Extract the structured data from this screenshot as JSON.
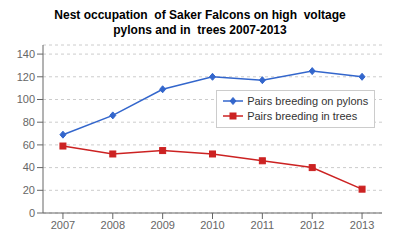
{
  "chart_data": {
    "type": "line",
    "title": "Nest occupation  of Saker Falcons on high  voltage\npylons and in  trees 2007-2013",
    "x": [
      2007,
      2008,
      2009,
      2010,
      2011,
      2012,
      2013
    ],
    "xlim": [
      2006.6,
      2013.4
    ],
    "xticks": [
      2007,
      2008,
      2009,
      2010,
      2011,
      2012,
      2013
    ],
    "ylim": [
      0,
      148
    ],
    "yticks": [
      0,
      20,
      40,
      60,
      80,
      100,
      120,
      140
    ],
    "grid": "y",
    "legend": "right",
    "series": [
      {
        "name": "Pairs breeding on pylons",
        "color": "#3366CC",
        "marker": "diamond",
        "values": [
          69,
          86,
          109,
          120,
          117,
          125,
          120
        ]
      },
      {
        "name": "Pairs breeding in trees",
        "color": "#CC2222",
        "marker": "square",
        "values": [
          59,
          52,
          55,
          52,
          46,
          40,
          21
        ]
      }
    ]
  }
}
